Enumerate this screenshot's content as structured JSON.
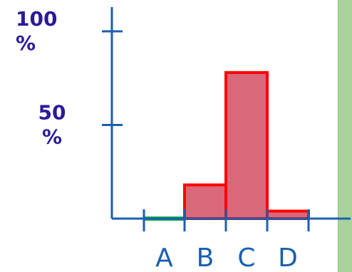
{
  "chart_data": {
    "type": "bar",
    "title": "",
    "xlabel": "",
    "ylabel": "",
    "categories": [
      "A",
      "B",
      "C",
      "D"
    ],
    "values": [
      0,
      18,
      78,
      4
    ],
    "ylim": [
      0,
      100
    ],
    "yticks": [
      {
        "value": 100,
        "line1": "100",
        "line2": "%"
      },
      {
        "value": 50,
        "line1": "50",
        "line2": "%"
      }
    ],
    "grid": false,
    "legend": "none",
    "colors": {
      "bar_fill": "#d9687a",
      "bar_stroke": "#ff0000",
      "zero_bar": "#17b04a",
      "axis": "#1a5fae",
      "y_tick_text": "#2b1a9a",
      "x_tick_text": "#1a5fae",
      "side_panel": "#a9d39a",
      "side_panel_edge": "#8fbf80"
    }
  }
}
